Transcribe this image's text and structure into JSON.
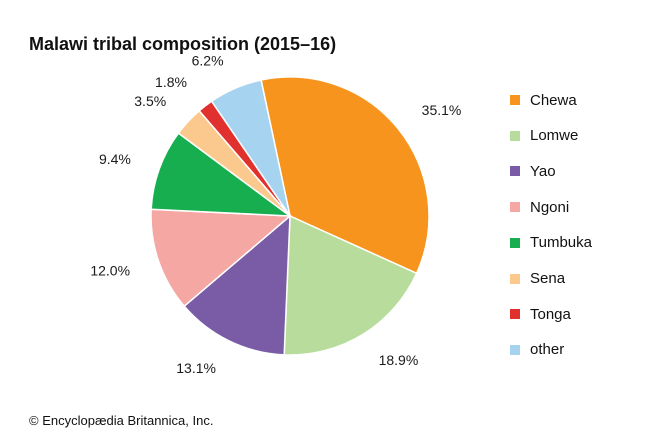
{
  "title": "Malawi tribal composition (2015–16)",
  "credit": "© Encyclopædia Britannica, Inc.",
  "chart_data": {
    "type": "pie",
    "title": "Malawi tribal composition (2015–16)",
    "slices": [
      {
        "label": "Chewa",
        "value": 35.1,
        "text": "35.1%",
        "color": "#f7941d"
      },
      {
        "label": "Lomwe",
        "value": 18.9,
        "text": "18.9%",
        "color": "#b7dc9c"
      },
      {
        "label": "Yao",
        "value": 13.1,
        "text": "13.1%",
        "color": "#7a5ca6"
      },
      {
        "label": "Ngoni",
        "value": 12.0,
        "text": "12.0%",
        "color": "#f4a7a3"
      },
      {
        "label": "Tumbuka",
        "value": 9.4,
        "text": "9.4%",
        "color": "#16ae4f"
      },
      {
        "label": "Sena",
        "value": 3.5,
        "text": "3.5%",
        "color": "#fbc98d"
      },
      {
        "label": "Tonga",
        "value": 1.8,
        "text": "1.8%",
        "color": "#e0312f"
      },
      {
        "label": "other",
        "value": 6.2,
        "text": "6.2%",
        "color": "#a6d3f0"
      }
    ],
    "legend_position": "right",
    "start_angle": "12 o'clock-ish, clockwise"
  }
}
